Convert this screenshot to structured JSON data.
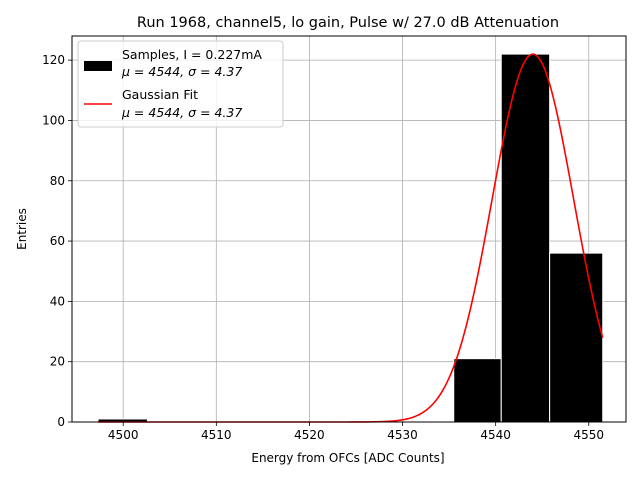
{
  "chart_data": {
    "type": "bar",
    "title": "Run 1968, channel5, lo gain, Pulse w/ 27.0 dB Attenuation",
    "xlabel": "Energy from OFCs [ADC Counts]",
    "ylabel": "Entries",
    "xlim": [
      4494.5,
      4554.0
    ],
    "ylim": [
      0,
      128
    ],
    "xticks": [
      4500,
      4510,
      4520,
      4530,
      4540,
      4550
    ],
    "yticks": [
      0,
      20,
      40,
      60,
      80,
      100,
      120
    ],
    "grid": true,
    "legend_position": "top-left",
    "histogram": {
      "name": "Samples, I = 0.227mA",
      "stats_label": "μ = 4544, σ = 4.37",
      "color": "#000000",
      "bins": [
        {
          "x0": 4497.3,
          "x1": 4502.6,
          "count": 1
        },
        {
          "x0": 4535.5,
          "x1": 4540.6,
          "count": 21
        },
        {
          "x0": 4540.6,
          "x1": 4545.8,
          "count": 122
        },
        {
          "x0": 4545.8,
          "x1": 4551.5,
          "count": 56
        }
      ]
    },
    "fit": {
      "name": "Gaussian Fit",
      "stats_label": "μ = 4544, σ = 4.37",
      "color": "#ff0000",
      "type": "gaussian",
      "amplitude": 122,
      "mu": 4544,
      "sigma": 4.37,
      "x_range": [
        4497.3,
        4551.5
      ]
    }
  }
}
